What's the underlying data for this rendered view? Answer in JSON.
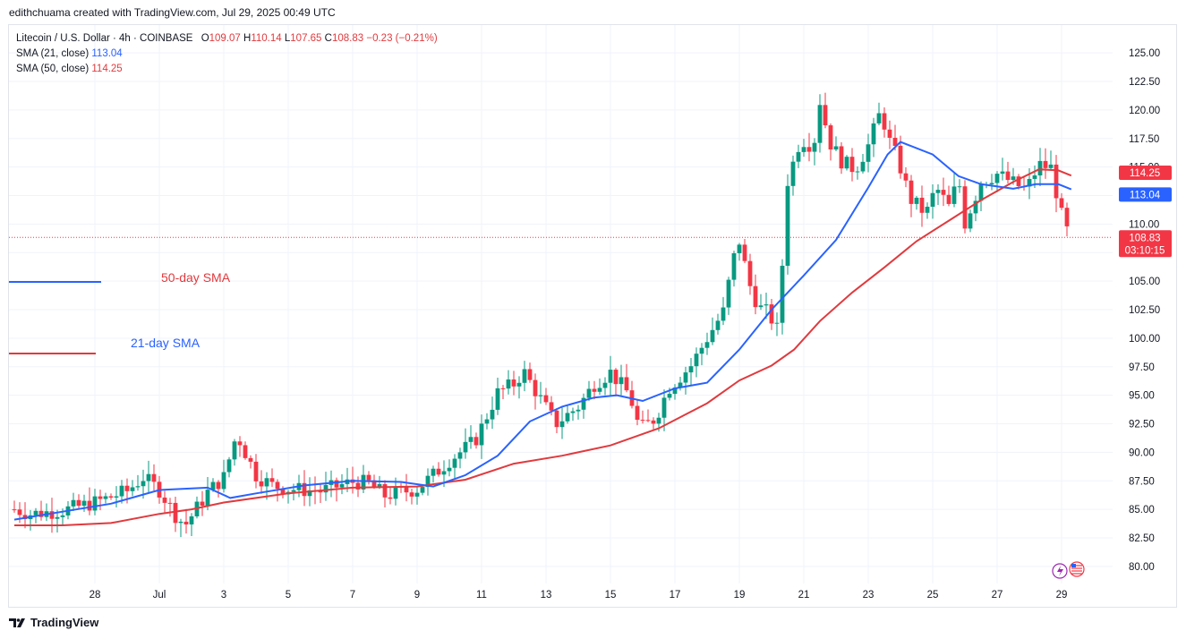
{
  "header": {
    "credit": "edithchuama created with TradingView.com, Jul 29, 2025 00:49 UTC"
  },
  "legend": {
    "symbol": "Litecoin / U.S. Dollar · 4h · COINBASE",
    "o_label": "O",
    "o": "109.07",
    "h_label": "H",
    "h": "110.14",
    "l_label": "L",
    "l": "107.65",
    "c_label": "C",
    "c": "108.83",
    "change": "−0.23 (−0.21%)",
    "sma21_label": "SMA (21, close)",
    "sma21_value": "113.04",
    "sma50_label": "SMA (50, close)",
    "sma50_value": "114.25"
  },
  "annotations": {
    "sma50": "50-day SMA",
    "sma21": "21-day SMA"
  },
  "price_labels": {
    "sma50": "114.25",
    "sma21": "113.04",
    "last": "108.83",
    "countdown": "03:10:15"
  },
  "footer": {
    "brand": "TradingView"
  },
  "colors": {
    "up": "#089981",
    "down": "#f23645",
    "sma21": "#2962ff",
    "sma50": "#e03a3e",
    "grid": "#f0f3fa"
  },
  "chart_data": {
    "type": "candlestick",
    "title": "Litecoin / U.S. Dollar · 4h · COINBASE",
    "ylim": [
      78.5,
      126.5
    ],
    "y_ticks": [
      "80.00",
      "82.50",
      "85.00",
      "87.50",
      "90.00",
      "92.50",
      "95.00",
      "97.50",
      "100.00",
      "102.50",
      "105.00",
      "107.50",
      "110.00",
      "112.50",
      "115.00",
      "117.50",
      "120.00",
      "122.50",
      "125.00"
    ],
    "x_ticks": [
      "28",
      "Jul",
      "3",
      "5",
      "7",
      "9",
      "11",
      "13",
      "15",
      "17",
      "19",
      "21",
      "23",
      "25",
      "27",
      "29"
    ],
    "x_tick_days": [
      -2,
      0,
      2,
      4,
      6,
      8,
      10,
      12,
      14,
      16,
      18,
      20,
      22,
      24,
      26,
      28
    ],
    "note_x": "days relative to Jul 1",
    "anchors": [
      [
        -4.5,
        85.0
      ],
      [
        -4.0,
        84.6
      ],
      [
        -3.0,
        84.9
      ],
      [
        -2.0,
        85.6
      ],
      [
        -1.0,
        86.6
      ],
      [
        -0.5,
        87.8
      ],
      [
        0.0,
        86.7
      ],
      [
        0.5,
        84.5
      ],
      [
        0.8,
        83.6
      ],
      [
        1.5,
        86.5
      ],
      [
        2.0,
        87.8
      ],
      [
        2.4,
        91.6
      ],
      [
        3.0,
        88.0
      ],
      [
        3.5,
        87.1
      ],
      [
        4.0,
        86.8
      ],
      [
        5.0,
        86.6
      ],
      [
        6.0,
        87.4
      ],
      [
        6.5,
        87.3
      ],
      [
        7.0,
        86.2
      ],
      [
        8.0,
        86.8
      ],
      [
        8.5,
        88.0
      ],
      [
        9.0,
        89.3
      ],
      [
        9.8,
        91.0
      ],
      [
        10.5,
        95.2
      ],
      [
        11.0,
        96.0
      ],
      [
        11.3,
        97.1
      ],
      [
        11.8,
        94.8
      ],
      [
        12.3,
        92.5
      ],
      [
        13.0,
        94.0
      ],
      [
        13.5,
        96.0
      ],
      [
        14.0,
        97.0
      ],
      [
        14.6,
        95.0
      ],
      [
        14.9,
        92.0
      ],
      [
        15.4,
        93.0
      ],
      [
        15.8,
        95.6
      ],
      [
        16.5,
        97.6
      ],
      [
        17.0,
        100.0
      ],
      [
        17.5,
        102.3
      ],
      [
        17.8,
        106.8
      ],
      [
        18.0,
        108.5
      ],
      [
        18.3,
        104.8
      ],
      [
        18.6,
        102.7
      ],
      [
        18.9,
        102.2
      ],
      [
        19.2,
        100.6
      ],
      [
        19.5,
        113.8
      ],
      [
        19.9,
        117.5
      ],
      [
        20.3,
        116.8
      ],
      [
        20.5,
        120.8
      ],
      [
        20.8,
        117.2
      ],
      [
        21.2,
        115.4
      ],
      [
        21.6,
        114.8
      ],
      [
        22.0,
        116.9
      ],
      [
        22.4,
        120.0
      ],
      [
        22.6,
        117.6
      ],
      [
        22.9,
        115.8
      ],
      [
        23.3,
        112.2
      ],
      [
        23.8,
        110.9
      ],
      [
        24.1,
        113.2
      ],
      [
        24.5,
        111.5
      ],
      [
        24.8,
        114.0
      ],
      [
        25.0,
        110.1
      ],
      [
        25.5,
        113.7
      ],
      [
        26.0,
        114.4
      ],
      [
        26.5,
        113.6
      ],
      [
        26.9,
        113.0
      ],
      [
        27.3,
        115.2
      ],
      [
        27.7,
        114.9
      ],
      [
        27.9,
        111.8
      ],
      [
        28.1,
        109.7
      ],
      [
        28.3,
        108.8
      ]
    ],
    "sma21": [
      [
        -4.5,
        84.1
      ],
      [
        -3.0,
        84.8
      ],
      [
        -1.5,
        85.5
      ],
      [
        0.0,
        86.7
      ],
      [
        1.5,
        86.9
      ],
      [
        2.2,
        86.0
      ],
      [
        3.0,
        86.4
      ],
      [
        4.5,
        87.1
      ],
      [
        6.0,
        87.5
      ],
      [
        7.5,
        87.4
      ],
      [
        8.5,
        87.0
      ],
      [
        9.5,
        88.0
      ],
      [
        10.5,
        89.7
      ],
      [
        11.5,
        92.7
      ],
      [
        12.5,
        94.0
      ],
      [
        13.5,
        94.8
      ],
      [
        14.2,
        95.0
      ],
      [
        15.0,
        94.5
      ],
      [
        16.0,
        95.6
      ],
      [
        17.0,
        96.1
      ],
      [
        18.0,
        99.0
      ],
      [
        19.0,
        102.5
      ],
      [
        20.0,
        105.5
      ],
      [
        21.0,
        108.6
      ],
      [
        22.0,
        113.2
      ],
      [
        22.6,
        116.1
      ],
      [
        23.0,
        117.2
      ],
      [
        24.0,
        116.1
      ],
      [
        24.8,
        114.2
      ],
      [
        25.5,
        113.5
      ],
      [
        26.5,
        113.1
      ],
      [
        27.2,
        113.5
      ],
      [
        27.9,
        113.5
      ],
      [
        28.3,
        113.04
      ]
    ],
    "sma50": [
      [
        -4.5,
        83.6
      ],
      [
        -3.0,
        83.6
      ],
      [
        -1.5,
        83.8
      ],
      [
        0.0,
        84.6
      ],
      [
        1.0,
        85.0
      ],
      [
        2.0,
        85.6
      ],
      [
        4.0,
        86.4
      ],
      [
        6.0,
        86.9
      ],
      [
        8.0,
        87.0
      ],
      [
        9.5,
        87.6
      ],
      [
        11.0,
        89.0
      ],
      [
        12.5,
        89.7
      ],
      [
        14.0,
        90.6
      ],
      [
        15.5,
        92.1
      ],
      [
        17.0,
        94.3
      ],
      [
        18.0,
        96.3
      ],
      [
        19.0,
        97.6
      ],
      [
        19.7,
        99.0
      ],
      [
        20.5,
        101.5
      ],
      [
        21.5,
        104.0
      ],
      [
        22.5,
        106.2
      ],
      [
        23.5,
        108.5
      ],
      [
        24.5,
        110.3
      ],
      [
        25.5,
        112.1
      ],
      [
        26.5,
        113.7
      ],
      [
        27.3,
        114.8
      ],
      [
        27.9,
        114.7
      ],
      [
        28.3,
        114.25
      ]
    ],
    "last_price": 108.83
  }
}
